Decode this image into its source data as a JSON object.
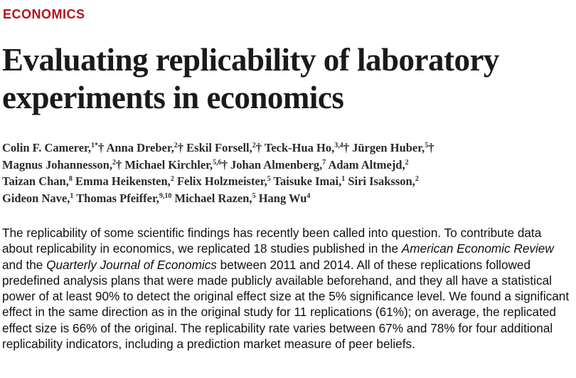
{
  "section": "ECONOMICS",
  "title_line1": "Evaluating replicability of laboratory",
  "title_line2": "experiments in economics",
  "authors": [
    {
      "name": "Colin F. Camerer,",
      "sup": "1*",
      "mark": "†"
    },
    {
      "name": "Anna Dreber,",
      "sup": "2",
      "mark": "†"
    },
    {
      "name": "Eskil Forsell,",
      "sup": "2",
      "mark": "†"
    },
    {
      "name": "Teck-Hua Ho,",
      "sup": "3,4",
      "mark": "†"
    },
    {
      "name": "Jürgen Huber,",
      "sup": "5",
      "mark": "†"
    },
    {
      "name": "Magnus Johannesson,",
      "sup": "2",
      "mark": "†"
    },
    {
      "name": "Michael Kirchler,",
      "sup": "5,6",
      "mark": "†"
    },
    {
      "name": "Johan Almenberg,",
      "sup": "7",
      "mark": ""
    },
    {
      "name": "Adam Altmejd,",
      "sup": "2",
      "mark": ""
    },
    {
      "name": "Taizan Chan,",
      "sup": "8",
      "mark": ""
    },
    {
      "name": "Emma Heikensten,",
      "sup": "2",
      "mark": ""
    },
    {
      "name": "Felix Holzmeister,",
      "sup": "5",
      "mark": ""
    },
    {
      "name": "Taisuke Imai,",
      "sup": "1",
      "mark": ""
    },
    {
      "name": "Siri Isaksson,",
      "sup": "2",
      "mark": ""
    },
    {
      "name": "Gideon Nave,",
      "sup": "1",
      "mark": ""
    },
    {
      "name": "Thomas Pfeiffer,",
      "sup": "9,10",
      "mark": ""
    },
    {
      "name": "Michael Razen,",
      "sup": "5",
      "mark": ""
    },
    {
      "name": "Hang Wu",
      "sup": "4",
      "mark": ""
    }
  ],
  "abstract": {
    "part1": "The replicability of some scientific findings has recently been called into question. To contribute data about replicability in economics, we replicated 18 studies published in the ",
    "journal1": "American Economic Review",
    "part2": " and the ",
    "journal2": "Quarterly Journal of Economics",
    "part3": " between 2011 and 2014. All of these replications followed predefined analysis plans that were made publicly available beforehand, and they all have a statistical power of at least 90% to detect the original effect size at the 5% significance level. We found a significant effect in the same direction as in the original study for 11 replications (61%); on average, the replicated effect size is 66% of the original. The replicability rate varies between 67% and 78% for four additional replicability indicators, including a prediction market measure of peer beliefs."
  },
  "colors": {
    "section_label": "#b5121b",
    "title": "#1a1a1a",
    "text": "#111111"
  }
}
